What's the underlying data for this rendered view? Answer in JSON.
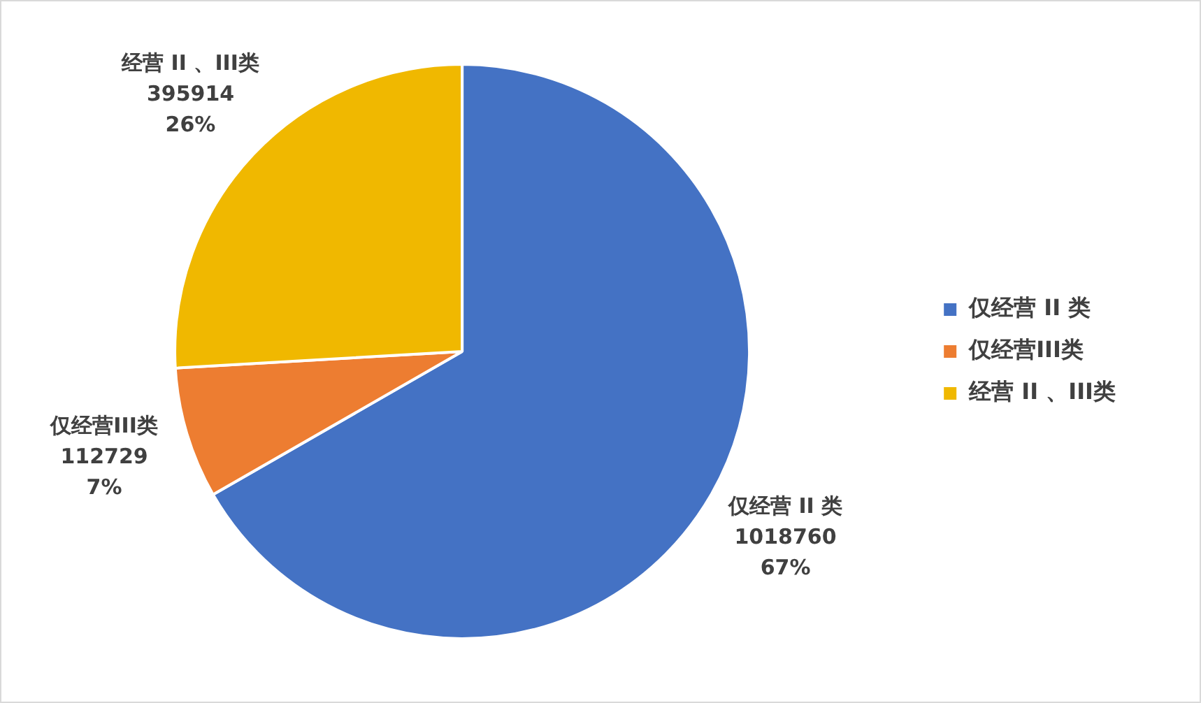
{
  "chart_data": {
    "type": "pie",
    "categories": [
      "仅经营 II 类",
      "仅经营III类",
      "经营 II 、III类"
    ],
    "values": [
      1018760,
      112729,
      395914
    ],
    "colors": [
      "#4472c4",
      "#ed7d31",
      "#f0b800"
    ],
    "value_labels": [
      "1018760\n67%",
      "112729\n7%",
      "395914\n26%"
    ],
    "legend": "right"
  }
}
